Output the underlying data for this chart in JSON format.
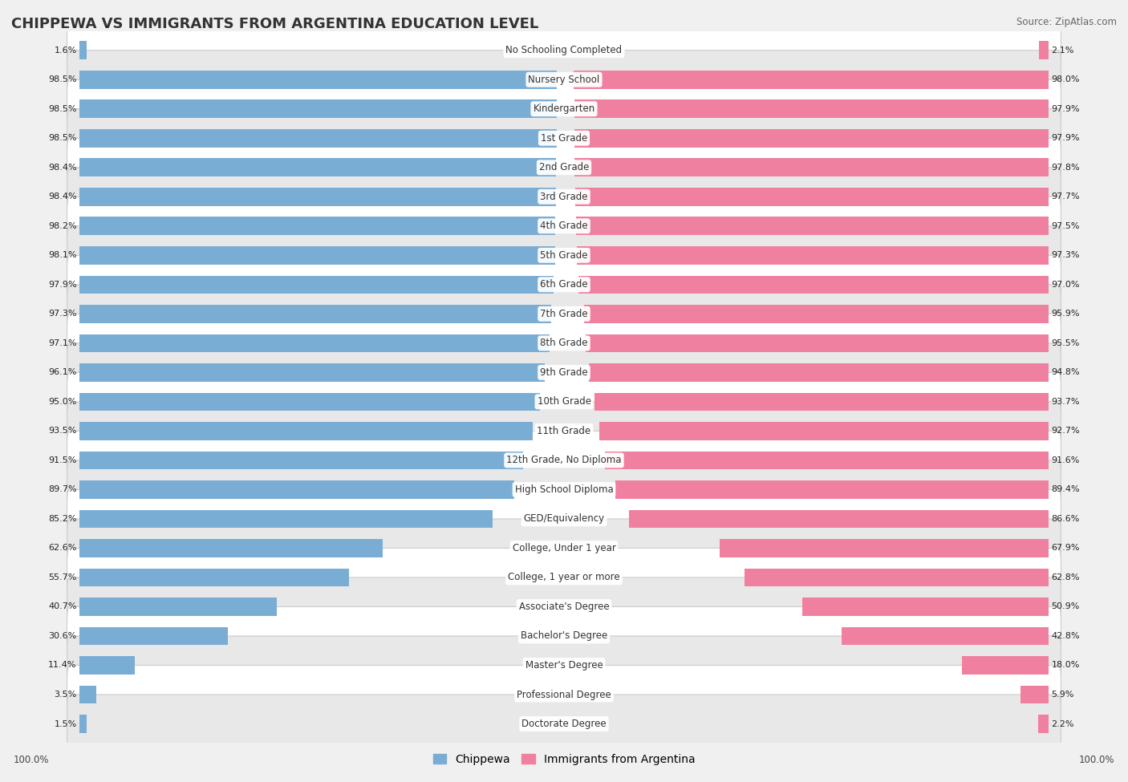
{
  "title": "CHIPPEWA VS IMMIGRANTS FROM ARGENTINA EDUCATION LEVEL",
  "source": "Source: ZipAtlas.com",
  "categories": [
    "No Schooling Completed",
    "Nursery School",
    "Kindergarten",
    "1st Grade",
    "2nd Grade",
    "3rd Grade",
    "4th Grade",
    "5th Grade",
    "6th Grade",
    "7th Grade",
    "8th Grade",
    "9th Grade",
    "10th Grade",
    "11th Grade",
    "12th Grade, No Diploma",
    "High School Diploma",
    "GED/Equivalency",
    "College, Under 1 year",
    "College, 1 year or more",
    "Associate's Degree",
    "Bachelor's Degree",
    "Master's Degree",
    "Professional Degree",
    "Doctorate Degree"
  ],
  "chippewa": [
    1.6,
    98.5,
    98.5,
    98.5,
    98.4,
    98.4,
    98.2,
    98.1,
    97.9,
    97.3,
    97.1,
    96.1,
    95.0,
    93.5,
    91.5,
    89.7,
    85.2,
    62.6,
    55.7,
    40.7,
    30.6,
    11.4,
    3.5,
    1.5
  ],
  "argentina": [
    2.1,
    98.0,
    97.9,
    97.9,
    97.8,
    97.7,
    97.5,
    97.3,
    97.0,
    95.9,
    95.5,
    94.8,
    93.7,
    92.7,
    91.6,
    89.4,
    86.6,
    67.9,
    62.8,
    50.9,
    42.8,
    18.0,
    5.9,
    2.2
  ],
  "chippewa_color": "#7aadd4",
  "argentina_color": "#f080a0",
  "bar_height": 0.62,
  "background_color": "#f0f0f0",
  "row_color_light": "#ffffff",
  "row_color_dark": "#e8e8e8",
  "title_fontsize": 13,
  "label_fontsize": 8.5,
  "value_fontsize": 8.0,
  "legend_fontsize": 10,
  "max_val": 100.0
}
